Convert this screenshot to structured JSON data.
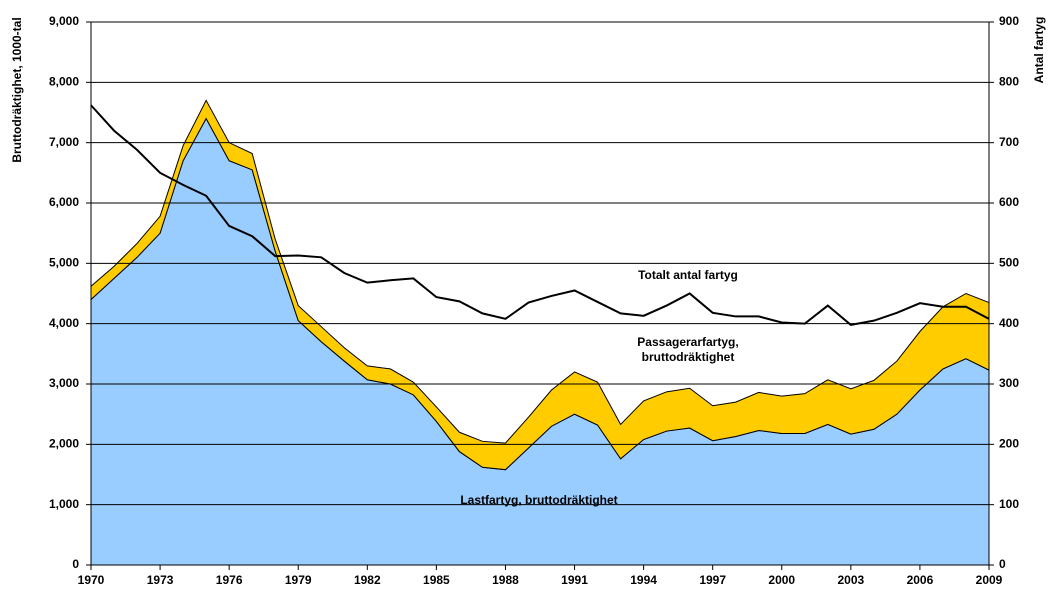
{
  "chart_data": {
    "type": "stacked-area-line",
    "y_label": "Bruttodräktighet,  1000-tal",
    "y2_label": "Antal fartyg",
    "x": [
      1970,
      1971,
      1972,
      1973,
      1974,
      1975,
      1976,
      1977,
      1978,
      1979,
      1980,
      1981,
      1982,
      1983,
      1984,
      1985,
      1986,
      1987,
      1988,
      1989,
      1990,
      1991,
      1992,
      1993,
      1994,
      1995,
      1996,
      1997,
      1998,
      1999,
      2000,
      2001,
      2002,
      2003,
      2004,
      2005,
      2006,
      2007,
      2008,
      2009
    ],
    "xlim": [
      1970,
      2009
    ],
    "xticks": [
      1970,
      1973,
      1976,
      1979,
      1982,
      1985,
      1988,
      1991,
      1994,
      1997,
      2000,
      2003,
      2006,
      2009
    ],
    "ylim": [
      0,
      9000
    ],
    "yticks": [
      0,
      {
        "value": 1000,
        "label": "1,000"
      },
      {
        "value": 2000,
        "label": "2,000"
      },
      {
        "value": 3000,
        "label": "3,000"
      },
      {
        "value": 4000,
        "label": "4,000"
      },
      {
        "value": 5000,
        "label": "5,000"
      },
      {
        "value": 6000,
        "label": "6,000"
      },
      {
        "value": 7000,
        "label": "7,000"
      },
      {
        "value": 8000,
        "label": "8,000"
      },
      {
        "value": 9000,
        "label": "9,000"
      }
    ],
    "y2lim": [
      0,
      900
    ],
    "y2ticks": [
      0,
      100,
      200,
      300,
      400,
      500,
      600,
      700,
      800,
      900
    ],
    "grid": true,
    "series": [
      {
        "name": "Lastfartyg,  bruttodräktighet",
        "color": "#99ccff",
        "stack": true,
        "values": [
          4400,
          4750,
          5100,
          5500,
          6700,
          7400,
          6700,
          6550,
          5200,
          4050,
          3700,
          3380,
          3070,
          3000,
          2820,
          2380,
          1880,
          1620,
          1580,
          1940,
          2300,
          2500,
          2320,
          1760,
          2080,
          2220,
          2270,
          2060,
          2130,
          2230,
          2180,
          2180,
          2330,
          2170,
          2250,
          2500,
          2900,
          3250,
          3420,
          3230
        ]
      },
      {
        "name": "Passagerarfartyg, bruttodräktighet",
        "color": "#ffcc00",
        "stack": true,
        "values": [
          220,
          200,
          230,
          280,
          250,
          300,
          300,
          270,
          200,
          250,
          250,
          220,
          230,
          250,
          210,
          240,
          320,
          430,
          440,
          510,
          600,
          700,
          710,
          570,
          640,
          650,
          660,
          580,
          570,
          630,
          620,
          660,
          740,
          750,
          810,
          880,
          970,
          1030,
          1080,
          1120
        ]
      },
      {
        "name": "Totalt antal fartyg",
        "color": "#000000",
        "axis": "y2",
        "values": [
          762,
          720,
          688,
          650,
          630,
          612,
          562,
          545,
          512,
          513,
          510,
          484,
          468,
          472,
          475,
          444,
          437,
          417,
          408,
          435,
          446,
          455,
          436,
          417,
          413,
          430,
          450,
          418,
          412,
          412,
          402,
          400,
          430,
          398,
          405,
          418,
          434,
          428,
          428,
          408
        ]
      }
    ],
    "annotations": [
      {
        "lines": [
          "Totalt antal fartyg"
        ],
        "series": 2
      },
      {
        "lines": [
          "Passagerarfartyg,",
          "bruttodräktighet"
        ],
        "series": 1
      },
      {
        "lines": [
          "Lastfartyg,  bruttodräktighet"
        ],
        "series": 0
      }
    ]
  }
}
